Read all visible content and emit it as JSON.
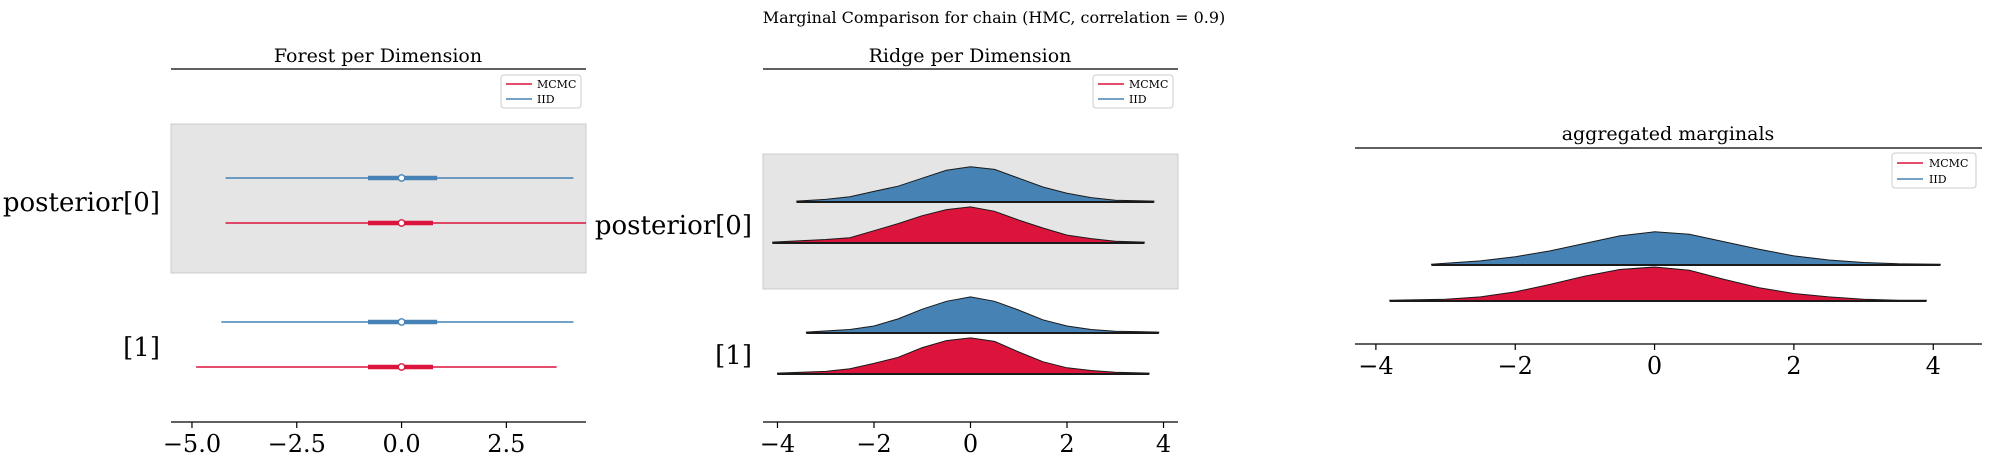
{
  "figure": {
    "suptitle": "Marginal Comparison for chain (HMC, correlation = 0.9)"
  },
  "colors": {
    "mcmc": "#dc143c",
    "mcmc_dark": "#c4103a",
    "iid": "#4682b4",
    "iid_dark": "#3a70a0",
    "highlight_band": "#e5e5e5"
  },
  "chart_data": [
    {
      "type": "forest",
      "title": "Forest per Dimension",
      "rows": [
        "posterior[0]",
        "[1]"
      ],
      "highlighted_row": "posterior[0]",
      "xlim": [
        -5.5,
        4.4
      ],
      "xticks": [
        -5.0,
        -2.5,
        0.0,
        2.5
      ],
      "xticklabels": [
        "−5.0",
        "−2.5",
        "0.0",
        "2.5"
      ],
      "legend": {
        "position": "upper right",
        "entries": [
          "MCMC",
          "IID"
        ]
      },
      "series": [
        {
          "name": "IID",
          "row": "posterior[0]",
          "median": 0.0,
          "q25": -0.8,
          "q75": 0.85,
          "min": -4.2,
          "max": 4.1
        },
        {
          "name": "MCMC",
          "row": "posterior[0]",
          "median": 0.0,
          "q25": -0.8,
          "q75": 0.75,
          "min": -4.2,
          "max": 4.4
        },
        {
          "name": "IID",
          "row": "[1]",
          "median": 0.0,
          "q25": -0.8,
          "q75": 0.85,
          "min": -4.3,
          "max": 4.1
        },
        {
          "name": "MCMC",
          "row": "[1]",
          "median": 0.0,
          "q25": -0.8,
          "q75": 0.75,
          "min": -4.9,
          "max": 3.7
        }
      ]
    },
    {
      "type": "ridge",
      "title": "Ridge per Dimension",
      "rows": [
        "posterior[0]",
        "[1]"
      ],
      "highlighted_row": "posterior[0]",
      "xlim": [
        -4.3,
        4.3
      ],
      "xticks": [
        -4,
        -2,
        0,
        2,
        4
      ],
      "xticklabels": [
        "−4",
        "−2",
        "0",
        "2",
        "4"
      ],
      "legend": {
        "position": "upper right",
        "entries": [
          "MCMC",
          "IID"
        ]
      },
      "series": [
        {
          "name": "IID",
          "row": "posterior[0]",
          "support": [
            -3.6,
            3.8
          ],
          "x": [
            -3.6,
            -3.0,
            -2.5,
            -2.0,
            -1.5,
            -1.0,
            -0.5,
            0.0,
            0.5,
            1.0,
            1.5,
            2.0,
            2.5,
            3.0,
            3.8
          ],
          "density": [
            0.01,
            0.03,
            0.06,
            0.12,
            0.18,
            0.27,
            0.36,
            0.4,
            0.37,
            0.27,
            0.17,
            0.1,
            0.05,
            0.02,
            0.01
          ]
        },
        {
          "name": "MCMC",
          "row": "posterior[0]",
          "support": [
            -4.1,
            3.6
          ],
          "x": [
            -4.1,
            -3.0,
            -2.5,
            -2.0,
            -1.5,
            -1.0,
            -0.5,
            0.0,
            0.5,
            1.0,
            1.5,
            2.0,
            2.5,
            3.0,
            3.6
          ],
          "density": [
            0.01,
            0.04,
            0.06,
            0.14,
            0.22,
            0.31,
            0.38,
            0.41,
            0.36,
            0.26,
            0.17,
            0.09,
            0.05,
            0.02,
            0.01
          ]
        },
        {
          "name": "IID",
          "row": "[1]",
          "support": [
            -3.4,
            3.9
          ],
          "x": [
            -3.4,
            -2.5,
            -2.0,
            -1.5,
            -1.0,
            -0.5,
            0.0,
            0.5,
            1.0,
            1.5,
            2.0,
            2.5,
            3.0,
            3.9
          ],
          "density": [
            0.01,
            0.04,
            0.08,
            0.16,
            0.27,
            0.36,
            0.41,
            0.36,
            0.26,
            0.15,
            0.08,
            0.04,
            0.02,
            0.01
          ]
        },
        {
          "name": "MCMC",
          "row": "[1]",
          "support": [
            -4.0,
            3.7
          ],
          "x": [
            -4.0,
            -3.0,
            -2.5,
            -2.0,
            -1.5,
            -1.0,
            -0.5,
            0.0,
            0.5,
            1.0,
            1.5,
            2.0,
            2.5,
            3.0,
            3.7
          ],
          "density": [
            0.01,
            0.03,
            0.06,
            0.12,
            0.19,
            0.3,
            0.38,
            0.41,
            0.37,
            0.25,
            0.14,
            0.07,
            0.04,
            0.02,
            0.01
          ]
        }
      ]
    },
    {
      "type": "ridge",
      "title": "aggregated marginals",
      "rows": [
        "IID",
        "MCMC"
      ],
      "xlim": [
        -4.3,
        4.7
      ],
      "xticks": [
        -4,
        -2,
        0,
        2,
        4
      ],
      "xticklabels": [
        "−4",
        "−2",
        "0",
        "2",
        "4"
      ],
      "legend": {
        "position": "upper right",
        "entries": [
          "MCMC",
          "IID"
        ]
      },
      "series": [
        {
          "name": "IID",
          "support": [
            -3.2,
            4.1
          ],
          "x": [
            -3.2,
            -3.0,
            -2.5,
            -2.0,
            -1.5,
            -1.0,
            -0.5,
            0.0,
            0.5,
            1.0,
            1.5,
            2.0,
            2.5,
            3.0,
            3.5,
            4.1
          ],
          "density": [
            0.01,
            0.02,
            0.05,
            0.1,
            0.17,
            0.26,
            0.35,
            0.4,
            0.37,
            0.28,
            0.19,
            0.11,
            0.06,
            0.03,
            0.015,
            0.01
          ]
        },
        {
          "name": "MCMC",
          "support": [
            -3.8,
            3.9
          ],
          "x": [
            -3.8,
            -3.0,
            -2.5,
            -2.0,
            -1.5,
            -1.0,
            -0.5,
            0.0,
            0.5,
            1.0,
            1.5,
            2.0,
            2.5,
            3.0,
            3.5,
            3.9
          ],
          "density": [
            0.01,
            0.02,
            0.05,
            0.11,
            0.2,
            0.3,
            0.38,
            0.41,
            0.37,
            0.26,
            0.16,
            0.09,
            0.05,
            0.02,
            0.01,
            0.01
          ]
        }
      ]
    }
  ]
}
